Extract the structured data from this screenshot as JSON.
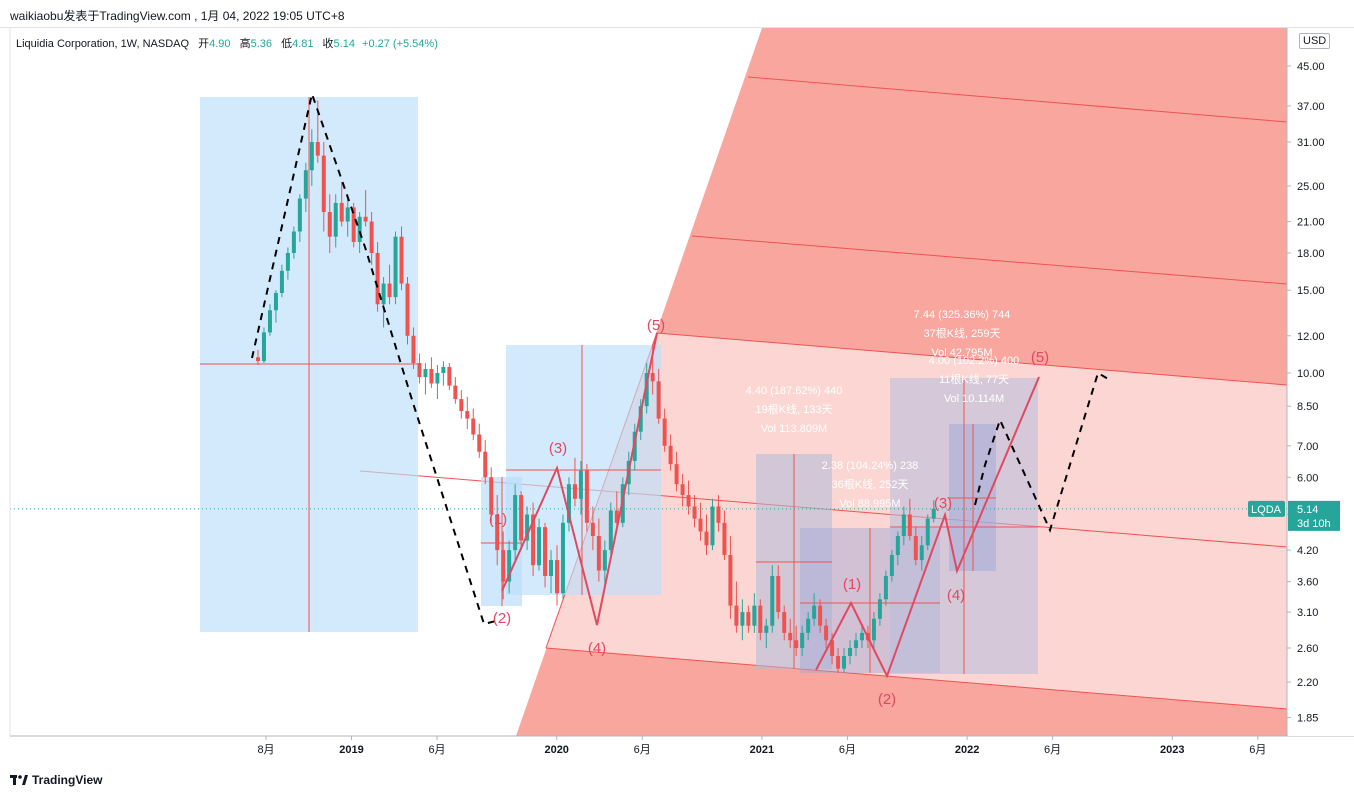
{
  "header": {
    "publisher": "waikiaobu发表于TradingView.com , 1月 04, 2022 19:05 UTC+8"
  },
  "legend": {
    "title": "Liquidia Corporation, 1W, NASDAQ",
    "open_label": "开",
    "open": "4.90",
    "high_label": "高",
    "high": "5.36",
    "low_label": "低",
    "low": "4.81",
    "close_label": "收",
    "close": "5.14",
    "change": "+0.27 (+5.54%)"
  },
  "currency": "USD",
  "price_tag": {
    "symbol": "LQDA",
    "price": "5.14",
    "countdown": "3d 10h"
  },
  "footer": {
    "brand": "TradingView"
  },
  "colors": {
    "up": "#26a69a",
    "down": "#ef5350",
    "fan": "#f7968d",
    "fan_light": "#fbd6d2",
    "box_blue": "#bbdefb",
    "box_purple": "#9fa8da",
    "wave": "#e0495f"
  },
  "chart_data": {
    "type": "candlestick",
    "scale": "log",
    "y_ticks": [
      1.85,
      2.2,
      2.6,
      3.1,
      3.6,
      4.2,
      5.0,
      6.0,
      7.0,
      8.5,
      10.0,
      12.0,
      15.0,
      18.0,
      21.0,
      25.0,
      31.0,
      37.0,
      45.0
    ],
    "y_tick_labels": [
      "1.85",
      "2.20",
      "2.60",
      "3.10",
      "3.60",
      "4.20",
      "",
      "6.00",
      "7.00",
      "8.50",
      "10.00",
      "12.00",
      "15.00",
      "18.00",
      "21.00",
      "25.00",
      "31.00",
      "37.00",
      "45.00"
    ],
    "x_ticks": [
      {
        "label": "8月",
        "date": "2018-08",
        "bold": false
      },
      {
        "label": "2019",
        "date": "2019-01",
        "bold": true
      },
      {
        "label": "6月",
        "date": "2019-06",
        "bold": false
      },
      {
        "label": "2020",
        "date": "2020-01",
        "bold": true
      },
      {
        "label": "6月",
        "date": "2020-06",
        "bold": false
      },
      {
        "label": "2021",
        "date": "2021-01",
        "bold": true
      },
      {
        "label": "6月",
        "date": "2021-06",
        "bold": false
      },
      {
        "label": "2022",
        "date": "2022-01",
        "bold": true
      },
      {
        "label": "6月",
        "date": "2022-06",
        "bold": false
      },
      {
        "label": "2023",
        "date": "2023-01",
        "bold": true
      },
      {
        "label": "6月",
        "date": "2023-06",
        "bold": false
      }
    ],
    "ohlc_series": [
      [
        10.8,
        11.2,
        10.4,
        10.6
      ],
      [
        10.6,
        12.5,
        10.5,
        12.2
      ],
      [
        12.2,
        14.0,
        12.0,
        13.6
      ],
      [
        13.6,
        15.0,
        12.8,
        14.8
      ],
      [
        14.8,
        17.0,
        14.5,
        16.5
      ],
      [
        16.5,
        18.5,
        15.8,
        18.0
      ],
      [
        18.0,
        20.5,
        17.5,
        20.0
      ],
      [
        20.0,
        24.0,
        19.0,
        23.5
      ],
      [
        23.5,
        28.0,
        22.0,
        27.0
      ],
      [
        27.0,
        33.0,
        25.0,
        31.0
      ],
      [
        31.0,
        38.0,
        28.0,
        29.0
      ],
      [
        29.0,
        31.0,
        20.0,
        22.0
      ],
      [
        22.0,
        24.0,
        18.0,
        19.5
      ],
      [
        19.5,
        24.0,
        18.5,
        23.0
      ],
      [
        23.0,
        25.5,
        20.5,
        21.0
      ],
      [
        21.0,
        24.0,
        19.5,
        22.5
      ],
      [
        22.5,
        23.0,
        18.5,
        19.0
      ],
      [
        19.0,
        22.0,
        18.0,
        21.5
      ],
      [
        21.5,
        24.5,
        20.5,
        21.0
      ],
      [
        21.0,
        22.0,
        17.0,
        18.0
      ],
      [
        18.0,
        19.0,
        13.5,
        14.0
      ],
      [
        14.0,
        16.0,
        12.5,
        15.5
      ],
      [
        15.5,
        17.0,
        14.0,
        14.5
      ],
      [
        14.5,
        20.0,
        14.0,
        19.5
      ],
      [
        19.5,
        20.5,
        15.0,
        15.5
      ],
      [
        15.5,
        16.0,
        11.5,
        12.0
      ],
      [
        12.0,
        12.5,
        10.2,
        10.5
      ],
      [
        10.5,
        11.0,
        9.5,
        9.8
      ],
      [
        9.8,
        10.5,
        9.0,
        10.2
      ],
      [
        10.2,
        10.8,
        9.3,
        9.5
      ],
      [
        9.5,
        10.4,
        8.8,
        10.0
      ],
      [
        10.0,
        10.6,
        9.4,
        10.3
      ],
      [
        10.3,
        10.5,
        9.2,
        9.4
      ],
      [
        9.4,
        9.8,
        8.6,
        8.8
      ],
      [
        8.8,
        9.2,
        8.0,
        8.3
      ],
      [
        8.3,
        8.9,
        7.6,
        8.0
      ],
      [
        8.0,
        8.4,
        7.2,
        7.4
      ],
      [
        7.4,
        7.8,
        6.6,
        6.8
      ],
      [
        6.8,
        7.2,
        5.8,
        6.0
      ],
      [
        6.0,
        6.3,
        4.8,
        5.0
      ],
      [
        5.0,
        5.5,
        3.9,
        4.2
      ],
      [
        4.2,
        4.6,
        3.3,
        3.6
      ],
      [
        3.6,
        4.4,
        3.4,
        4.2
      ],
      [
        4.2,
        5.8,
        4.0,
        5.5
      ],
      [
        5.5,
        5.6,
        4.2,
        4.4
      ],
      [
        4.4,
        5.2,
        4.2,
        5.0
      ],
      [
        5.0,
        5.3,
        3.7,
        3.9
      ],
      [
        3.9,
        4.9,
        3.8,
        4.7
      ],
      [
        4.7,
        4.8,
        3.5,
        3.7
      ],
      [
        3.7,
        4.2,
        3.4,
        4.0
      ],
      [
        4.0,
        4.3,
        3.2,
        3.4
      ],
      [
        3.4,
        5.0,
        3.3,
        4.8
      ],
      [
        4.8,
        6.0,
        4.6,
        5.8
      ],
      [
        5.8,
        6.6,
        5.2,
        5.4
      ],
      [
        5.4,
        6.5,
        5.0,
        6.2
      ],
      [
        6.2,
        6.4,
        4.6,
        4.8
      ],
      [
        4.8,
        5.2,
        4.2,
        4.5
      ],
      [
        4.5,
        4.9,
        3.6,
        3.8
      ],
      [
        3.8,
        4.4,
        3.5,
        4.2
      ],
      [
        4.2,
        5.3,
        4.1,
        5.1
      ],
      [
        5.1,
        5.6,
        4.6,
        4.8
      ],
      [
        4.8,
        6.0,
        4.7,
        5.8
      ],
      [
        5.8,
        6.8,
        5.5,
        6.5
      ],
      [
        6.5,
        7.8,
        6.2,
        7.5
      ],
      [
        7.5,
        8.8,
        7.2,
        8.5
      ],
      [
        8.5,
        10.5,
        8.2,
        10.0
      ],
      [
        10.0,
        11.5,
        9.0,
        9.6
      ],
      [
        9.6,
        10.2,
        7.8,
        8.0
      ],
      [
        8.0,
        8.4,
        6.8,
        7.0
      ],
      [
        7.0,
        7.4,
        6.2,
        6.4
      ],
      [
        6.4,
        6.8,
        5.6,
        5.8
      ],
      [
        5.8,
        6.1,
        5.2,
        5.5
      ],
      [
        5.5,
        5.9,
        5.0,
        5.2
      ],
      [
        5.2,
        5.5,
        4.7,
        4.9
      ],
      [
        4.9,
        5.3,
        4.4,
        4.6
      ],
      [
        4.6,
        5.0,
        4.1,
        4.3
      ],
      [
        4.3,
        5.4,
        4.2,
        5.2
      ],
      [
        5.2,
        5.5,
        4.6,
        4.8
      ],
      [
        4.8,
        5.1,
        4.0,
        4.1
      ],
      [
        4.1,
        4.5,
        3.0,
        3.2
      ],
      [
        3.2,
        3.6,
        2.8,
        2.9
      ],
      [
        2.9,
        3.3,
        2.7,
        3.1
      ],
      [
        3.1,
        3.2,
        2.8,
        2.9
      ],
      [
        2.9,
        3.4,
        2.8,
        3.2
      ],
      [
        3.2,
        3.3,
        2.7,
        2.8
      ],
      [
        2.8,
        3.0,
        2.6,
        2.9
      ],
      [
        2.9,
        3.9,
        2.8,
        3.7
      ],
      [
        3.7,
        3.9,
        3.0,
        3.1
      ],
      [
        3.1,
        3.2,
        2.7,
        2.8
      ],
      [
        2.8,
        3.0,
        2.6,
        2.7
      ],
      [
        2.7,
        2.9,
        2.5,
        2.6
      ],
      [
        2.6,
        2.9,
        2.5,
        2.8
      ],
      [
        2.8,
        3.1,
        2.7,
        3.0
      ],
      [
        3.0,
        3.4,
        2.9,
        3.2
      ],
      [
        3.2,
        3.3,
        2.8,
        2.9
      ],
      [
        2.9,
        3.0,
        2.6,
        2.7
      ],
      [
        2.7,
        2.8,
        2.4,
        2.5
      ],
      [
        2.5,
        2.6,
        2.3,
        2.35
      ],
      [
        2.35,
        2.6,
        2.3,
        2.5
      ],
      [
        2.5,
        2.7,
        2.4,
        2.6
      ],
      [
        2.6,
        2.8,
        2.5,
        2.7
      ],
      [
        2.7,
        2.9,
        2.6,
        2.8
      ],
      [
        2.8,
        2.9,
        2.6,
        2.7
      ],
      [
        2.7,
        3.1,
        2.6,
        3.0
      ],
      [
        3.0,
        3.4,
        2.9,
        3.3
      ],
      [
        3.3,
        3.8,
        3.2,
        3.7
      ],
      [
        3.7,
        4.2,
        3.6,
        4.1
      ],
      [
        4.1,
        4.6,
        3.9,
        4.5
      ],
      [
        4.5,
        5.2,
        4.3,
        5.0
      ],
      [
        5.0,
        5.4,
        4.4,
        4.5
      ],
      [
        4.5,
        4.7,
        3.9,
        4.0
      ],
      [
        4.0,
        4.5,
        3.8,
        4.3
      ],
      [
        4.3,
        5.0,
        4.2,
        4.9
      ],
      [
        4.9,
        5.36,
        4.81,
        5.14
      ]
    ],
    "annotations": [
      "(1)",
      "(2)",
      "(3)",
      "(4)",
      "(5)",
      "(1)",
      "(2)",
      "(3)",
      "(4)",
      "(5)"
    ],
    "measure_labels": [
      {
        "lines": [
          "4.40 (187.62%) 440",
          "19根K线, 133天",
          "Vol 113.809M"
        ]
      },
      {
        "lines": [
          "2.38 (104.24%) 238",
          "36根K线, 252天",
          "Vol 88.995M"
        ]
      },
      {
        "lines": [
          "7.44 (325.36%) 744",
          "37根K线, 259天",
          "Vol 42.795M"
        ]
      },
      {
        "lines": [
          "4.00 (102.2%) 400",
          "11根K线, 77天",
          "Vol 10.114M"
        ]
      }
    ]
  }
}
